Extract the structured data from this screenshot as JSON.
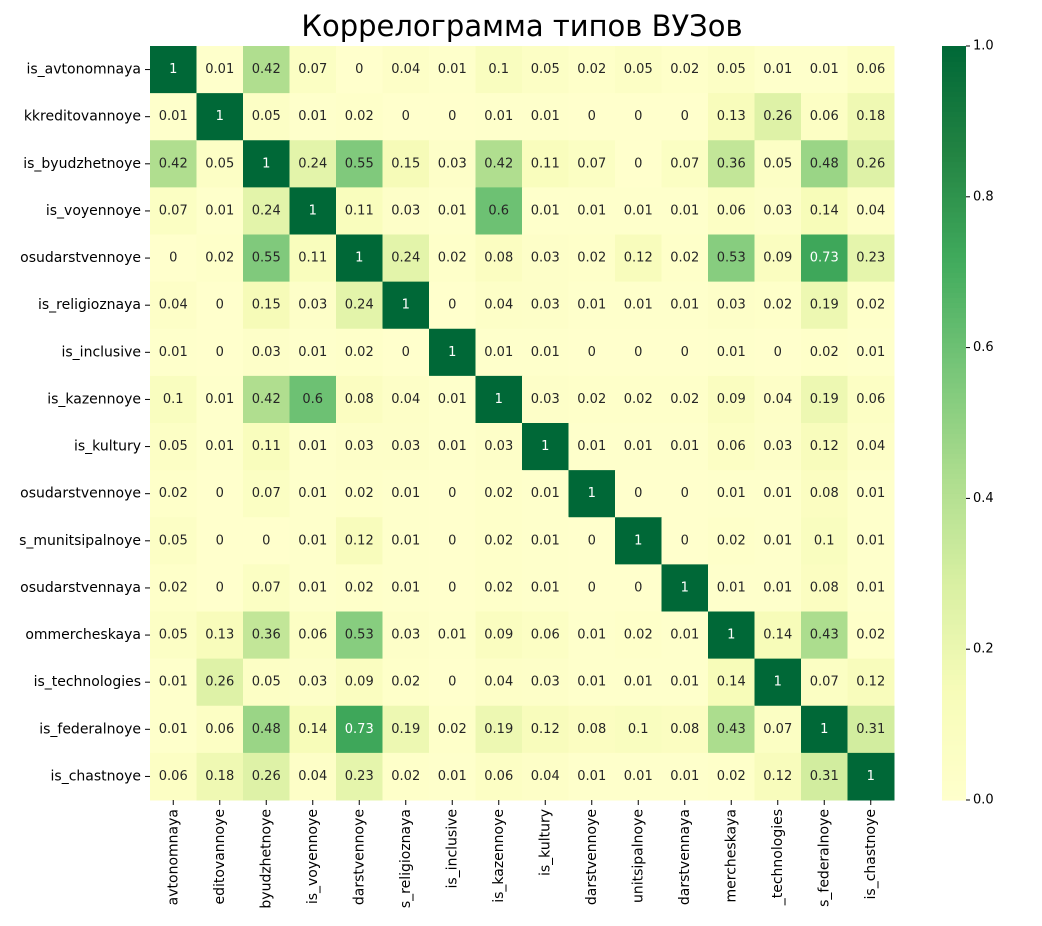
{
  "chart_data": {
    "type": "heatmap",
    "title": "Коррелограмма типов ВУЗов",
    "colormap": "YlGn",
    "y_categories": [
      "is_avtonomnaya",
      "kkreditovannoye",
      "is_byudzhetnoye",
      "is_voyennoye",
      "osudarstvennoye",
      "is_religioznaya",
      "is_inclusive",
      "is_kazennoye",
      "is_kultury",
      "osudarstvennoye",
      "s_munitsipalnoye",
      "osudarstvennaya",
      "ommercheskaya",
      "is_technologies",
      "is_federalnoye",
      "is_chastnoye"
    ],
    "x_categories": [
      "avtonomnaya",
      "editovannoye",
      "byudzhetnoye",
      "is_voyennoye",
      "darstvennoye",
      "s_religioznaya",
      "is_inclusive",
      "is_kazennoye",
      "is_kultury",
      "darstvennoye",
      "unitsipalnoye",
      "darstvennaya",
      "mercheskaya",
      "_technologies",
      "s_federalnoye",
      "is_chastnoye"
    ],
    "values": [
      [
        1,
        0.01,
        0.42,
        0.07,
        0,
        0.04,
        0.01,
        0.1,
        0.05,
        0.02,
        0.05,
        0.02,
        0.05,
        0.01,
        0.01,
        0.06
      ],
      [
        0.01,
        1,
        0.05,
        0.01,
        0.02,
        0,
        0,
        0.01,
        0.01,
        0,
        0,
        0,
        0.13,
        0.26,
        0.06,
        0.18
      ],
      [
        0.42,
        0.05,
        1,
        0.24,
        0.55,
        0.15,
        0.03,
        0.42,
        0.11,
        0.07,
        0,
        0.07,
        0.36,
        0.05,
        0.48,
        0.26
      ],
      [
        0.07,
        0.01,
        0.24,
        1,
        0.11,
        0.03,
        0.01,
        0.6,
        0.01,
        0.01,
        0.01,
        0.01,
        0.06,
        0.03,
        0.14,
        0.04
      ],
      [
        0,
        0.02,
        0.55,
        0.11,
        1,
        0.24,
        0.02,
        0.08,
        0.03,
        0.02,
        0.12,
        0.02,
        0.53,
        0.09,
        0.73,
        0.23
      ],
      [
        0.04,
        0,
        0.15,
        0.03,
        0.24,
        1,
        0,
        0.04,
        0.03,
        0.01,
        0.01,
        0.01,
        0.03,
        0.02,
        0.19,
        0.02
      ],
      [
        0.01,
        0,
        0.03,
        0.01,
        0.02,
        0,
        1,
        0.01,
        0.01,
        0,
        0,
        0,
        0.01,
        0,
        0.02,
        0.01
      ],
      [
        0.1,
        0.01,
        0.42,
        0.6,
        0.08,
        0.04,
        0.01,
        1,
        0.03,
        0.02,
        0.02,
        0.02,
        0.09,
        0.04,
        0.19,
        0.06
      ],
      [
        0.05,
        0.01,
        0.11,
        0.01,
        0.03,
        0.03,
        0.01,
        0.03,
        1,
        0.01,
        0.01,
        0.01,
        0.06,
        0.03,
        0.12,
        0.04
      ],
      [
        0.02,
        0,
        0.07,
        0.01,
        0.02,
        0.01,
        0,
        0.02,
        0.01,
        1,
        0,
        0,
        0.01,
        0.01,
        0.08,
        0.01
      ],
      [
        0.05,
        0,
        0,
        0.01,
        0.12,
        0.01,
        0,
        0.02,
        0.01,
        0,
        1,
        0,
        0.02,
        0.01,
        0.1,
        0.01
      ],
      [
        0.02,
        0,
        0.07,
        0.01,
        0.02,
        0.01,
        0,
        0.02,
        0.01,
        0,
        0,
        1,
        0.01,
        0.01,
        0.08,
        0.01
      ],
      [
        0.05,
        0.13,
        0.36,
        0.06,
        0.53,
        0.03,
        0.01,
        0.09,
        0.06,
        0.01,
        0.02,
        0.01,
        1,
        0.14,
        0.43,
        0.02
      ],
      [
        0.01,
        0.26,
        0.05,
        0.03,
        0.09,
        0.02,
        0,
        0.04,
        0.03,
        0.01,
        0.01,
        0.01,
        0.14,
        1,
        0.07,
        0.12
      ],
      [
        0.01,
        0.06,
        0.48,
        0.14,
        0.73,
        0.19,
        0.02,
        0.19,
        0.12,
        0.08,
        0.1,
        0.08,
        0.43,
        0.07,
        1,
        0.31
      ],
      [
        0.06,
        0.18,
        0.26,
        0.04,
        0.23,
        0.02,
        0.01,
        0.06,
        0.04,
        0.01,
        0.01,
        0.01,
        0.02,
        0.12,
        0.31,
        1
      ]
    ],
    "zlim": [
      0,
      1
    ],
    "zticks": [
      {
        "value": 0,
        "label": "0.0"
      },
      {
        "value": 0.2,
        "label": "0.2"
      },
      {
        "value": 0.4,
        "label": "0.4"
      },
      {
        "value": 0.6,
        "label": "0.6"
      },
      {
        "value": 0.8,
        "label": "0.8"
      },
      {
        "value": 1,
        "label": "1.0"
      }
    ]
  }
}
